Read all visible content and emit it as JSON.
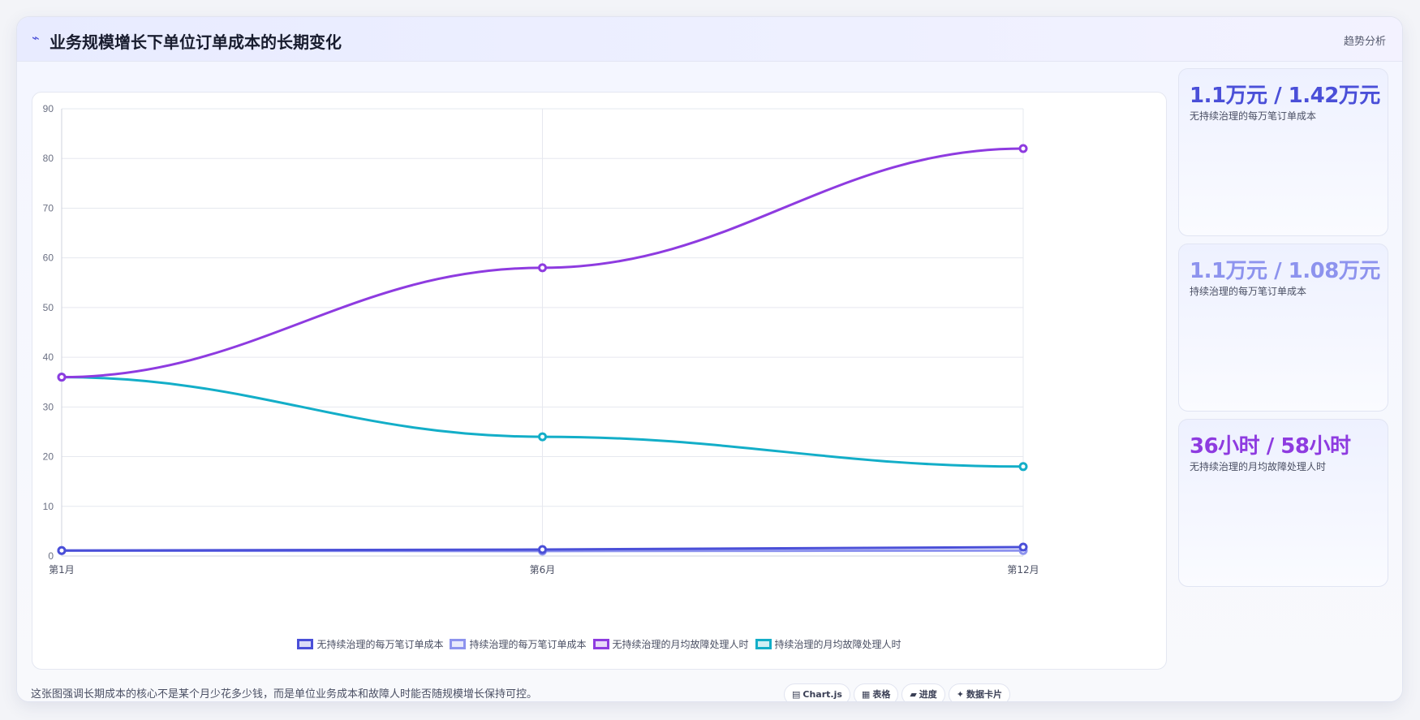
{
  "header": {
    "icon": "trend-icon",
    "icon_glyph": "⌁",
    "title": "业务规模增长下单位订单成本的长期变化",
    "tag": "趋势分析"
  },
  "chart_data": {
    "type": "line",
    "categories": [
      "第1月",
      "第6月",
      "第12月"
    ],
    "ylim": [
      0,
      90
    ],
    "yticks": [
      0,
      10,
      20,
      30,
      40,
      50,
      60,
      70,
      80,
      90
    ],
    "grid": true,
    "legend_position": "bottom",
    "title": "",
    "xlabel": "",
    "ylabel": "",
    "series": [
      {
        "name": "无持续治理的每万笔订单成本",
        "values": [
          1.1,
          1.3,
          1.8
        ],
        "color": "#4a4fd8"
      },
      {
        "name": "持续治理的每万笔订单成本",
        "values": [
          1.1,
          1.0,
          1.1
        ],
        "color": "#8d93ee"
      },
      {
        "name": "无持续治理的月均故障处理人时",
        "values": [
          36,
          58,
          82
        ],
        "color": "#8e3be0"
      },
      {
        "name": "持续治理的月均故障处理人时",
        "values": [
          36,
          24,
          18
        ],
        "color": "#13aec8"
      }
    ]
  },
  "stats": [
    {
      "value": "1.1万元 / 1.42万元",
      "label": "无持续治理的每万笔订单成本",
      "color": "#4a4fd8"
    },
    {
      "value": "1.1万元 / 1.08万元",
      "label": "持续治理的每万笔订单成本",
      "color": "#8d93ee"
    },
    {
      "value": "36小时 / 58小时",
      "label": "无持续治理的月均故障处理人时",
      "color": "#8e3be0"
    }
  ],
  "footer": {
    "note": "这张图强调长期成本的核心不是某个月少花多少钱，而是单位业务成本和故障人时能否随规模增长保持可控。",
    "chips": [
      {
        "icon": "chart-icon",
        "glyph": "▤",
        "label": "Chart.js"
      },
      {
        "icon": "table-icon",
        "glyph": "▦",
        "label": "表格"
      },
      {
        "icon": "progress-icon",
        "glyph": "▰",
        "label": "进度"
      },
      {
        "icon": "card-icon",
        "glyph": "✦",
        "label": "数据卡片"
      }
    ]
  }
}
